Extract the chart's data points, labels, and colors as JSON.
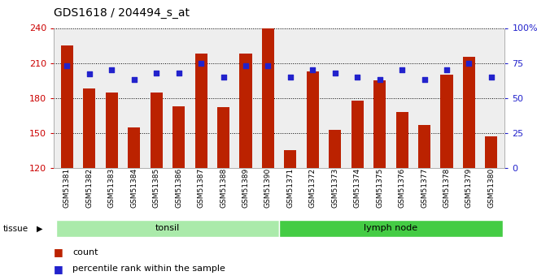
{
  "title": "GDS1618 / 204494_s_at",
  "samples": [
    "GSM51381",
    "GSM51382",
    "GSM51383",
    "GSM51384",
    "GSM51385",
    "GSM51386",
    "GSM51387",
    "GSM51388",
    "GSM51389",
    "GSM51390",
    "GSM51371",
    "GSM51372",
    "GSM51373",
    "GSM51374",
    "GSM51375",
    "GSM51376",
    "GSM51377",
    "GSM51378",
    "GSM51379",
    "GSM51380"
  ],
  "counts": [
    225,
    188,
    185,
    155,
    185,
    173,
    218,
    172,
    218,
    240,
    135,
    203,
    153,
    178,
    195,
    168,
    157,
    200,
    215,
    147
  ],
  "percentiles": [
    73,
    67,
    70,
    63,
    68,
    68,
    75,
    65,
    73,
    73,
    65,
    70,
    68,
    65,
    63,
    70,
    63,
    70,
    75,
    65
  ],
  "tissue_groups": [
    {
      "label": "tonsil",
      "start": 0,
      "end": 10,
      "color": "#aaeaaa"
    },
    {
      "label": "lymph node",
      "start": 10,
      "end": 20,
      "color": "#44cc44"
    }
  ],
  "bar_color": "#bb2200",
  "dot_color": "#2222cc",
  "ylim_left": [
    120,
    240
  ],
  "ylim_right": [
    0,
    100
  ],
  "yticks_left": [
    120,
    150,
    180,
    210,
    240
  ],
  "yticks_right": [
    0,
    25,
    50,
    75,
    100
  ],
  "ytick_labels_right": [
    "0",
    "25",
    "50",
    "75",
    "100%"
  ],
  "plot_bg_color": "#eeeeee",
  "legend_items": [
    {
      "label": "count",
      "color": "#bb2200"
    },
    {
      "label": "percentile rank within the sample",
      "color": "#2222cc"
    }
  ],
  "left_axis_color": "#cc0000",
  "right_axis_color": "#2222cc"
}
